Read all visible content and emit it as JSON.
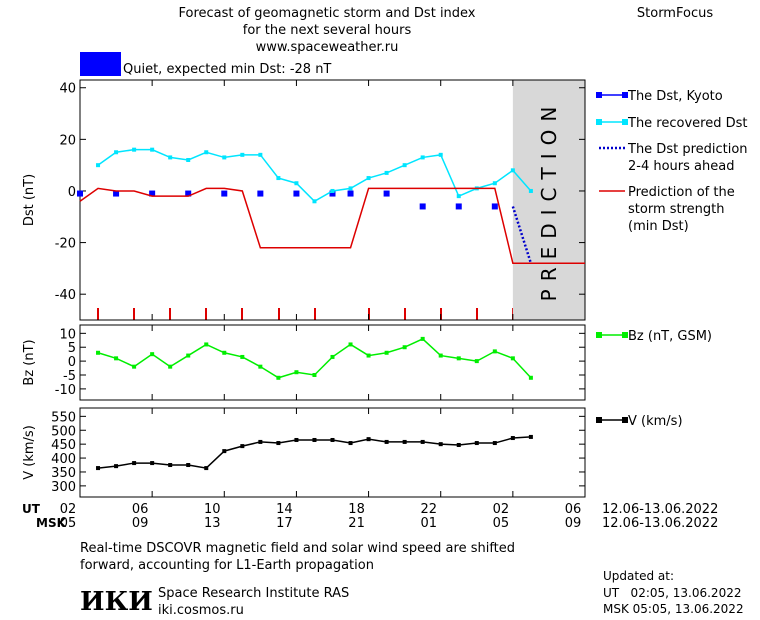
{
  "header": {
    "title": "Forecast of geomagnetic storm and Dst index\nfor the next several hours\nwww.spaceweather.ru",
    "brand": "StormFocus",
    "status_color": "#0000ff",
    "status_text": "Quiet, expected min Dst: -28 nT"
  },
  "x_axis": {
    "xlim": [
      "2022-06-12T02:00",
      "2022-06-13T06:00"
    ],
    "xticks": [
      {
        "value": "2022-06-12T02:00",
        "label": "02"
      },
      {
        "value": "2022-06-12T06:00",
        "label": "06"
      },
      {
        "value": "2022-06-12T10:00",
        "label": "10"
      },
      {
        "value": "2022-06-12T14:00",
        "label": "14"
      },
      {
        "value": "2022-06-12T18:00",
        "label": "18"
      },
      {
        "value": "2022-06-12T22:00",
        "label": "22"
      },
      {
        "value": "2022-06-13T02:00",
        "label": "02"
      },
      {
        "value": "2022-06-13T06:00",
        "label": "06"
      }
    ],
    "msk_labels": [
      "05",
      "09",
      "13",
      "17",
      "21",
      "01",
      "05",
      "09"
    ],
    "ut_label": "UT",
    "msk_label": "MSK",
    "ut_range": "12.06-13.06.2022",
    "msk_range": "12.06-13.06.2022",
    "prediction_start": "2022-06-13T02:00",
    "prediction_label": "PREDICTION"
  },
  "chart_data": [
    {
      "type": "line",
      "ylabel": "Dst (nT)",
      "ylim": [
        -50,
        43
      ],
      "yticks": [
        40,
        20,
        0,
        -20,
        -40
      ],
      "series": [
        {
          "name": "The Dst, Kyoto",
          "color": "#0000ff",
          "marker": "square",
          "line": "none",
          "x": [
            "2022-06-12T02:00",
            "2022-06-12T04:00",
            "2022-06-12T06:00",
            "2022-06-12T08:00",
            "2022-06-12T10:00",
            "2022-06-12T12:00",
            "2022-06-12T14:00",
            "2022-06-12T16:00",
            "2022-06-12T17:00",
            "2022-06-12T19:00",
            "2022-06-12T21:00",
            "2022-06-12T23:00",
            "2022-06-13T01:00"
          ],
          "values": [
            -1,
            -1,
            -1,
            -1,
            -1,
            -1,
            -1,
            -1,
            -1,
            -1,
            -6,
            -6,
            -6
          ]
        },
        {
          "name": "The recovered Dst",
          "color": "#00e5ff",
          "marker": "square",
          "line": "solid",
          "x": [
            "2022-06-12T03:00",
            "2022-06-12T04:00",
            "2022-06-12T05:00",
            "2022-06-12T06:00",
            "2022-06-12T07:00",
            "2022-06-12T08:00",
            "2022-06-12T09:00",
            "2022-06-12T10:00",
            "2022-06-12T11:00",
            "2022-06-12T12:00",
            "2022-06-12T13:00",
            "2022-06-12T14:00",
            "2022-06-12T15:00",
            "2022-06-12T16:00",
            "2022-06-12T17:00",
            "2022-06-12T18:00",
            "2022-06-12T19:00",
            "2022-06-12T20:00",
            "2022-06-12T21:00",
            "2022-06-12T22:00",
            "2022-06-12T23:00",
            "2022-06-13T00:00",
            "2022-06-13T01:00",
            "2022-06-13T02:00",
            "2022-06-13T03:00"
          ],
          "values": [
            10,
            15,
            16,
            16,
            13,
            12,
            15,
            13,
            14,
            14,
            5,
            3,
            -4,
            0,
            1,
            5,
            7,
            10,
            13,
            14,
            -2,
            1,
            3,
            8,
            0
          ]
        },
        {
          "name": "The Dst prediction\n2-4 hours ahead",
          "color": "#0000cc",
          "marker": null,
          "line": "dotted",
          "x": [
            "2022-06-13T02:00",
            "2022-06-13T03:00"
          ],
          "values": [
            -6,
            -28
          ]
        },
        {
          "name": "Prediction of the\nstorm strength\n(min Dst)",
          "color": "#dd0000",
          "marker": null,
          "line": "solid",
          "x": [
            "2022-06-12T02:00",
            "2022-06-12T03:00",
            "2022-06-12T04:00",
            "2022-06-12T05:00",
            "2022-06-12T06:00",
            "2022-06-12T07:00",
            "2022-06-12T08:00",
            "2022-06-12T09:00",
            "2022-06-12T10:00",
            "2022-06-12T11:00",
            "2022-06-12T12:00",
            "2022-06-12T13:00",
            "2022-06-12T14:00",
            "2022-06-12T15:00",
            "2022-06-12T16:00",
            "2022-06-12T17:00",
            "2022-06-12T18:00",
            "2022-06-12T19:00",
            "2022-06-12T20:00",
            "2022-06-12T21:00",
            "2022-06-12T22:00",
            "2022-06-12T23:00",
            "2022-06-13T00:00",
            "2022-06-13T01:00",
            "2022-06-13T02:00",
            "2022-06-13T03:00",
            "2022-06-13T04:00",
            "2022-06-13T05:00",
            "2022-06-13T06:00"
          ],
          "values": [
            -4,
            1,
            0,
            0,
            -2,
            -2,
            -2,
            1,
            1,
            0,
            -22,
            -22,
            -22,
            -22,
            -22,
            -22,
            1,
            1,
            1,
            1,
            1,
            1,
            1,
            1,
            -28,
            -28,
            -28,
            -28,
            -28
          ]
        }
      ]
    },
    {
      "type": "line",
      "ylabel": "Bz (nT)",
      "ylim": [
        -14,
        13
      ],
      "yticks": [
        10,
        5,
        0,
        -5,
        -10
      ],
      "series": [
        {
          "name": "Bz (nT, GSM)",
          "color": "#00ee00",
          "marker": "square",
          "line": "solid",
          "x": [
            "2022-06-12T03:00",
            "2022-06-12T04:00",
            "2022-06-12T05:00",
            "2022-06-12T06:00",
            "2022-06-12T07:00",
            "2022-06-12T08:00",
            "2022-06-12T09:00",
            "2022-06-12T10:00",
            "2022-06-12T11:00",
            "2022-06-12T12:00",
            "2022-06-12T13:00",
            "2022-06-12T14:00",
            "2022-06-12T15:00",
            "2022-06-12T16:00",
            "2022-06-12T17:00",
            "2022-06-12T18:00",
            "2022-06-12T19:00",
            "2022-06-12T20:00",
            "2022-06-12T21:00",
            "2022-06-12T22:00",
            "2022-06-12T23:00",
            "2022-06-13T00:00",
            "2022-06-13T01:00",
            "2022-06-13T02:00",
            "2022-06-13T03:00"
          ],
          "values": [
            3,
            1,
            -2,
            2.5,
            -2,
            2,
            6,
            3,
            1.5,
            -2,
            -6,
            -4,
            -5,
            1.5,
            6,
            2,
            3,
            5,
            8,
            2,
            1,
            0,
            3.5,
            1,
            -6
          ]
        }
      ]
    },
    {
      "type": "line",
      "ylabel": "V (km/s)",
      "ylim": [
        260,
        580
      ],
      "yticks": [
        550,
        500,
        450,
        400,
        350,
        300
      ],
      "series": [
        {
          "name": "V (km/s)",
          "color": "#000000",
          "marker": "square",
          "line": "solid",
          "x": [
            "2022-06-12T03:00",
            "2022-06-12T04:00",
            "2022-06-12T05:00",
            "2022-06-12T06:00",
            "2022-06-12T07:00",
            "2022-06-12T08:00",
            "2022-06-12T09:00",
            "2022-06-12T10:00",
            "2022-06-12T11:00",
            "2022-06-12T12:00",
            "2022-06-12T13:00",
            "2022-06-12T14:00",
            "2022-06-12T15:00",
            "2022-06-12T16:00",
            "2022-06-12T17:00",
            "2022-06-12T18:00",
            "2022-06-12T19:00",
            "2022-06-12T20:00",
            "2022-06-12T21:00",
            "2022-06-12T22:00",
            "2022-06-12T23:00",
            "2022-06-13T00:00",
            "2022-06-13T01:00",
            "2022-06-13T02:00",
            "2022-06-13T03:00"
          ],
          "values": [
            364,
            371,
            382,
            382,
            375,
            375,
            364,
            425,
            443,
            458,
            454,
            465,
            465,
            465,
            454,
            468,
            458,
            458,
            458,
            450,
            447,
            454,
            454,
            472,
            476
          ]
        }
      ]
    }
  ],
  "footer": {
    "note": "Real-time DSCOVR magnetic field and solar wind speed are shifted\nforward, accounting for L1-Earth propagation",
    "logo": "ИКИ",
    "institute": "Space Research Institute RAS",
    "site": "iki.cosmos.ru",
    "updated_label": "Updated at:",
    "updated_ut": "UT   02:05, 13.06.2022",
    "updated_msk": "MSK 05:05, 13.06.2022"
  }
}
